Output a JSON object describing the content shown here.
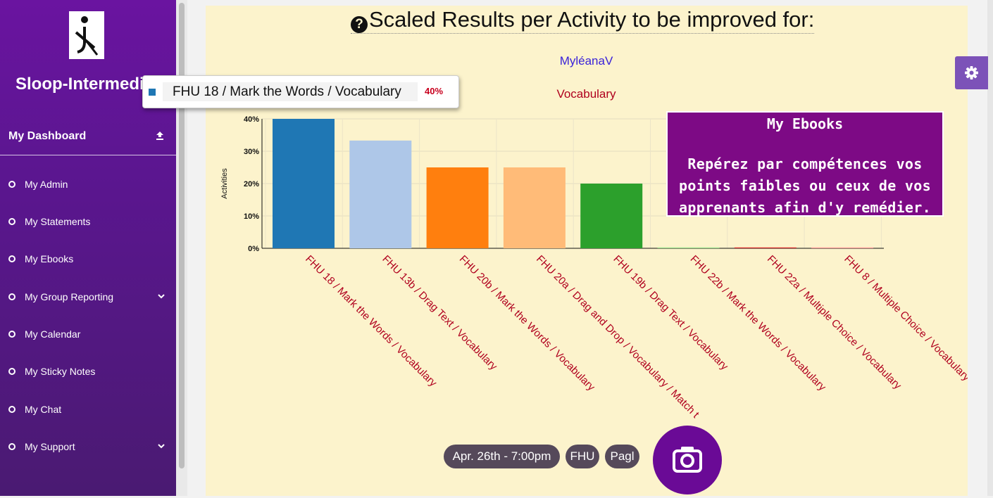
{
  "sidebar": {
    "app_title": "Sloop-Intermediate",
    "dashboard_label": "My Dashboard",
    "items": [
      {
        "label": "My Admin"
      },
      {
        "label": "My Statements"
      },
      {
        "label": "My Ebooks"
      },
      {
        "label": "My Group Reporting",
        "expandable": true
      },
      {
        "label": "My Calendar"
      },
      {
        "label": "My Sticky Notes"
      },
      {
        "label": "My Chat"
      },
      {
        "label": "My Support",
        "expandable": true
      }
    ]
  },
  "main": {
    "title": "Scaled Results per Activity to be improved for:",
    "user": "MyléanaV",
    "category": "Vocabulary"
  },
  "tooltip": {
    "label": "FHU 18 / Mark the Words / Vocabulary",
    "value": "40%"
  },
  "promo": {
    "title": "My Ebooks",
    "lines": [
      "Repérez par compétences vos",
      "points faibles ou ceux de vos",
      "apprenants afin d'y remédier."
    ]
  },
  "footer": {
    "date_pill": "Apr. 26th - 7:00pm",
    "tag1": "FHU",
    "tag2": "Pagl"
  },
  "colors": {
    "accent": "#6a14a0",
    "panel": "#fcf3cc",
    "label_red": "#b0001e"
  },
  "chart_data": {
    "type": "bar",
    "ylabel": "Activities",
    "ylim": [
      0,
      40
    ],
    "yticks": [
      "0%",
      "10%",
      "20%",
      "30%",
      "40%"
    ],
    "categories": [
      "FHU 18 / Mark the Words / Vocabulary",
      "FHU 13b / Drag Text / Vocabulary",
      "FHU 20b / Mark the Words / Vocabulary",
      "FHU 20a / Drag and Drop / Vocabulary / Match t",
      "FHU 19b / Drag Text / Vocabulary",
      "FHU 22b / Mark the Words / Vocabulary",
      "FHU 22a / Multiple Choice / Vocabulary",
      "FHU 8 / Multiple Choice / Vocabulary"
    ],
    "values": [
      40,
      33.3,
      25,
      25,
      20,
      0,
      0,
      0
    ],
    "colors": [
      "#1f77b4",
      "#aec7e8",
      "#ff7f0e",
      "#ffbb78",
      "#2ca02c",
      "#98df8a",
      "#d62728",
      "#ff9896"
    ]
  }
}
